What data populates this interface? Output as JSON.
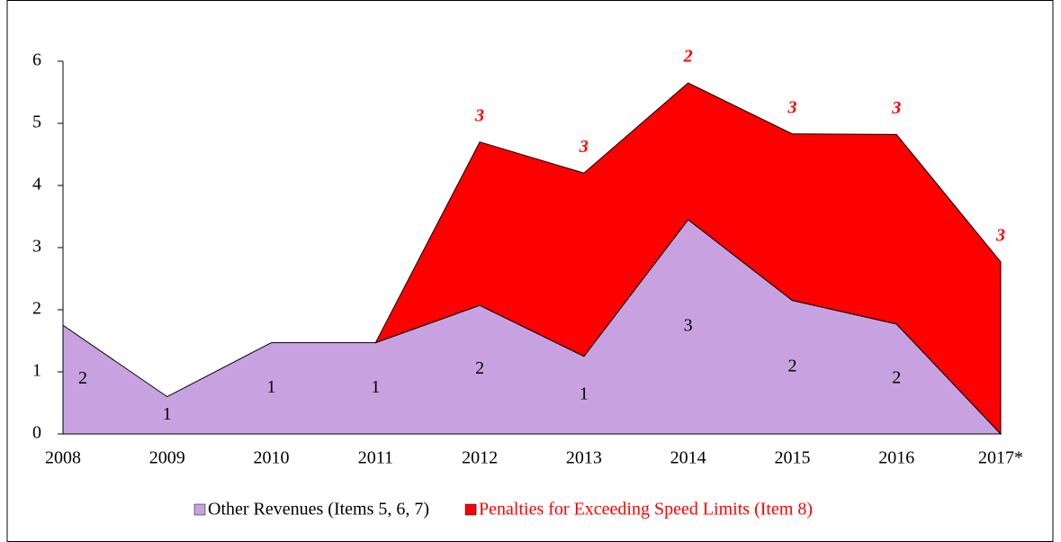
{
  "chart_data": {
    "type": "stacked_area",
    "categories": [
      "2008",
      "2009",
      "2010",
      "2011",
      "2012",
      "2013",
      "2014",
      "2015",
      "2016",
      "2017*"
    ],
    "series": [
      {
        "name": "Other Revenues (Items 5, 6, 7)",
        "color": "#c8a2e0",
        "values": [
          1.75,
          0.6,
          1.47,
          1.47,
          2.07,
          1.25,
          3.45,
          2.15,
          1.77,
          0
        ],
        "value_labels": [
          "2",
          "1",
          "1",
          "1",
          "2",
          "1",
          "3",
          "2",
          "2",
          null
        ]
      },
      {
        "name": "Penalties for Exceeding Speed Limits (Item 8)",
        "color": "#ff0000",
        "values": [
          null,
          null,
          null,
          0,
          2.63,
          2.95,
          2.2,
          2.68,
          3.05,
          2.77
        ],
        "value_labels": [
          null,
          null,
          null,
          null,
          "3",
          "3",
          "2",
          "3",
          "3",
          "3"
        ]
      }
    ],
    "ylim": [
      0,
      6
    ],
    "yticks": [
      0,
      1,
      2,
      3,
      4,
      5,
      6
    ]
  }
}
